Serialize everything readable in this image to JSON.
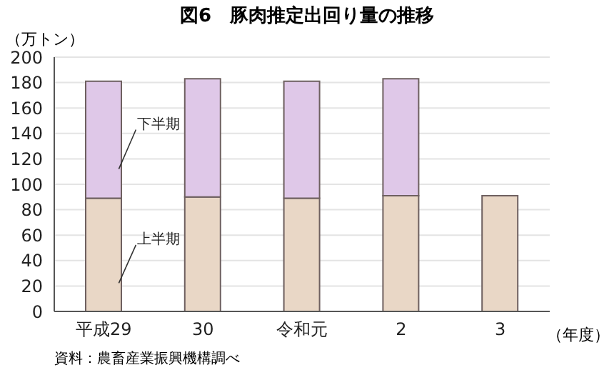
{
  "chart_data": {
    "type": "bar",
    "title": "図6　豚肉推定出回り量の推移",
    "ylabel": "（万トン）",
    "xlabel": "（年度）",
    "categories": [
      "平成29",
      "30",
      "令和元",
      "2",
      "3"
    ],
    "stacked": true,
    "series": [
      {
        "name": "上半期",
        "color": "#e9d7c6",
        "values": [
          89,
          90,
          89,
          91,
          91
        ]
      },
      {
        "name": "下半期",
        "color": "#dfc8e8",
        "values": [
          92,
          93,
          92,
          92,
          null
        ]
      }
    ],
    "ylim": [
      0,
      200
    ],
    "yticks": [
      0,
      20,
      40,
      60,
      80,
      100,
      120,
      140,
      160,
      180,
      200
    ],
    "grid": "y",
    "annotations": [
      "資料：農畜産業振興機構調べ"
    ]
  }
}
